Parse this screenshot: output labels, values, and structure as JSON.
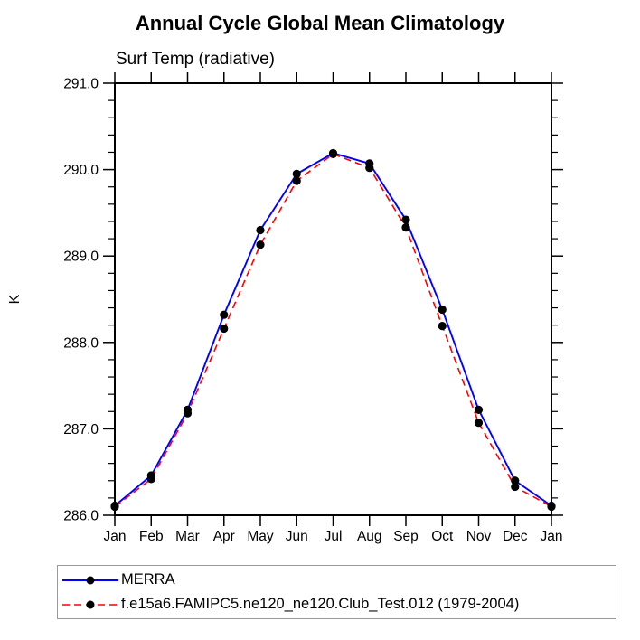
{
  "title": "Annual Cycle Global Mean Climatology",
  "subtitle": "Surf Temp (radiative)",
  "ylabel": "K",
  "chart_data": {
    "type": "line",
    "categories": [
      "Jan",
      "Feb",
      "Mar",
      "Apr",
      "May",
      "Jun",
      "Jul",
      "Aug",
      "Sep",
      "Oct",
      "Nov",
      "Dec",
      "Jan"
    ],
    "series": [
      {
        "name": "MERRA",
        "color": "#0000ff",
        "line_style": "solid",
        "marker": "black-dot",
        "values": [
          286.11,
          286.46,
          287.22,
          288.32,
          289.3,
          289.95,
          290.19,
          290.07,
          289.42,
          288.38,
          287.22,
          286.4,
          286.11
        ]
      },
      {
        "name": "f.e15a6.FAMIPC5.ne120_ne120.Club_Test.012 (1979-2004)",
        "color": "#ff0000",
        "line_style": "dashed",
        "marker": "black-dot",
        "values": [
          286.1,
          286.42,
          287.18,
          288.16,
          289.13,
          289.87,
          290.18,
          290.02,
          289.33,
          288.19,
          287.07,
          286.33,
          286.1
        ]
      }
    ],
    "ylim": [
      286.0,
      291.0
    ],
    "ytick_major": 1.0,
    "ytick_minor": 0.2,
    "ytick_labels": [
      "286.0",
      "287.0",
      "288.0",
      "289.0",
      "290.0",
      "291.0"
    ],
    "grid": false,
    "legend_position": "bottom",
    "marker_color": "#000000",
    "axis_color": "#000000"
  }
}
